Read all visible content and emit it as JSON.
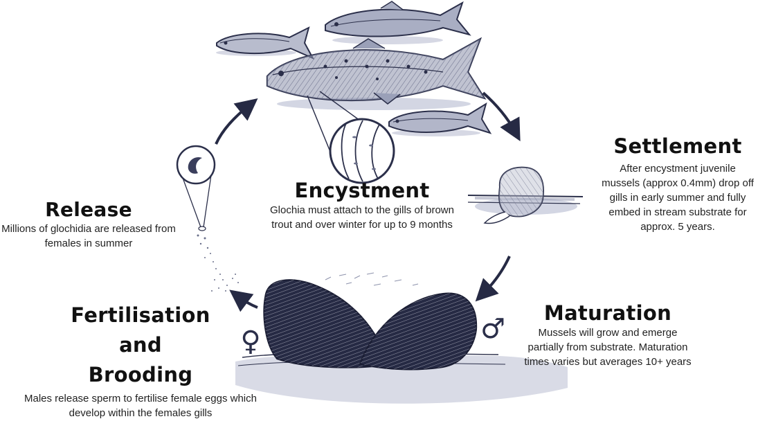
{
  "stages": {
    "release": {
      "title": "Release",
      "text": "Millions of glochidia are released from females in summer"
    },
    "encystment": {
      "title": "Encystment",
      "text": "Glochia must attach to the gills of brown trout and over winter for up to 9 months"
    },
    "settlement": {
      "title": "Settlement",
      "text": "After encystment juvenile mussels (approx 0.4mm) drop off gills in early summer and fully embed in stream substrate for approx. 5 years."
    },
    "maturation": {
      "title": "Maturation",
      "text": "Mussels will grow and emerge partially from substrate. Maturation times varies but averages 10+ years"
    },
    "fertilisation": {
      "title_lines": [
        "Fertilisation",
        "and",
        "Brooding"
      ],
      "text": "Males release sperm to fertilise female eggs which develop within the females gills"
    }
  },
  "symbols": {
    "female": "♀",
    "male": "♂"
  },
  "colors": {
    "ink": "#2b2f4a",
    "arrow": "#262a44",
    "shadow": "#c9ccdb"
  },
  "icons": [
    "trout-icon",
    "gill-magnified-icon",
    "juvenile-mussel-icon",
    "glochidium-icon",
    "adult-mussel-icon",
    "arrow-icon"
  ]
}
